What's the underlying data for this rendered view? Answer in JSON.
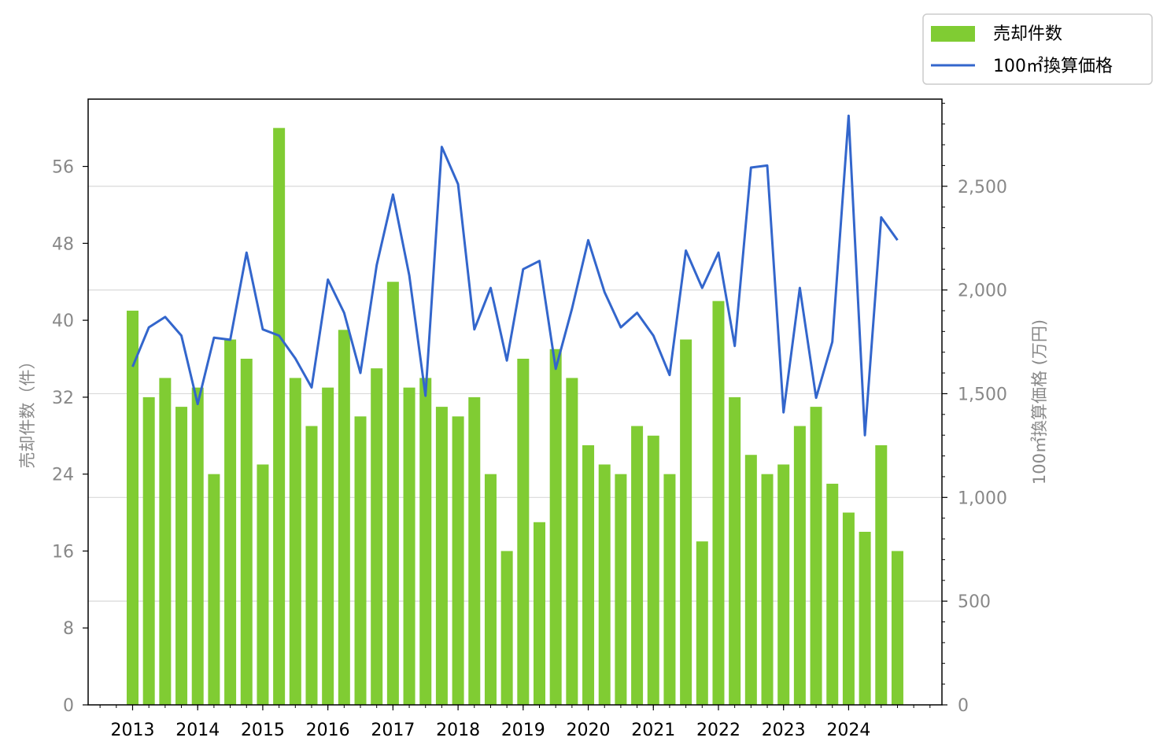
{
  "chart_data": {
    "type": "bar+line",
    "categories": [
      "2013-Q1",
      "2013-Q2",
      "2013-Q3",
      "2013-Q4",
      "2014-Q1",
      "2014-Q2",
      "2014-Q3",
      "2014-Q4",
      "2015-Q1",
      "2015-Q2",
      "2015-Q3",
      "2015-Q4",
      "2016-Q1",
      "2016-Q2",
      "2016-Q3",
      "2016-Q4",
      "2017-Q1",
      "2017-Q2",
      "2017-Q3",
      "2017-Q4",
      "2018-Q1",
      "2018-Q2",
      "2018-Q3",
      "2018-Q4",
      "2019-Q1",
      "2019-Q2",
      "2019-Q3",
      "2019-Q4",
      "2020-Q1",
      "2020-Q2",
      "2020-Q3",
      "2020-Q4",
      "2021-Q1",
      "2021-Q2",
      "2021-Q3",
      "2021-Q4",
      "2022-Q1",
      "2022-Q2",
      "2022-Q3",
      "2022-Q4",
      "2023-Q1",
      "2023-Q2",
      "2023-Q3",
      "2023-Q4",
      "2024-Q1",
      "2024-Q2",
      "2024-Q3",
      "2024-Q4"
    ],
    "x_tick_labels": [
      "2013",
      "2014",
      "2015",
      "2016",
      "2017",
      "2018",
      "2019",
      "2020",
      "2021",
      "2022",
      "2023",
      "2024"
    ],
    "series": [
      {
        "name": "売却件数",
        "type": "bar",
        "axis": "left",
        "color": "#80cc33",
        "values": [
          41,
          32,
          34,
          31,
          33,
          24,
          38,
          36,
          25,
          60,
          34,
          29,
          33,
          39,
          30,
          35,
          44,
          33,
          34,
          31,
          30,
          32,
          24,
          16,
          36,
          19,
          37,
          34,
          27,
          25,
          24,
          29,
          28,
          24,
          38,
          17,
          42,
          32,
          26,
          24,
          25,
          29,
          31,
          23,
          20,
          18,
          27,
          16
        ]
      },
      {
        "name": "100㎡換算価格",
        "type": "line",
        "axis": "right",
        "color": "#3366cc",
        "values": [
          1630,
          1820,
          1870,
          1780,
          1450,
          1770,
          1760,
          2180,
          1810,
          1780,
          1670,
          1530,
          2050,
          1890,
          1600,
          2120,
          2460,
          2070,
          1490,
          2690,
          2510,
          1810,
          2010,
          1660,
          2100,
          2140,
          1620,
          1910,
          2240,
          1990,
          1820,
          1890,
          1780,
          1590,
          2190,
          2010,
          2180,
          1730,
          2590,
          2600,
          1410,
          2010,
          1480,
          1750,
          2840,
          1300,
          2350,
          2240
        ]
      }
    ],
    "y_left": {
      "label": "売却件数（件）",
      "ylim": [
        0,
        63
      ],
      "ticks": [
        0,
        8,
        16,
        24,
        32,
        40,
        48,
        56
      ]
    },
    "y_right": {
      "label": "100㎡換算価格 (万円)",
      "ylim": [
        0,
        2920
      ],
      "ticks": [
        0,
        500,
        1000,
        1500,
        2000,
        2500
      ],
      "tick_labels": [
        "0",
        "500",
        "1,000",
        "1,500",
        "2,000",
        "2,500"
      ]
    },
    "grid": "horizontal, right axis",
    "legend": {
      "position": "top-right",
      "entries": [
        "売却件数",
        "100㎡換算価格"
      ]
    }
  }
}
